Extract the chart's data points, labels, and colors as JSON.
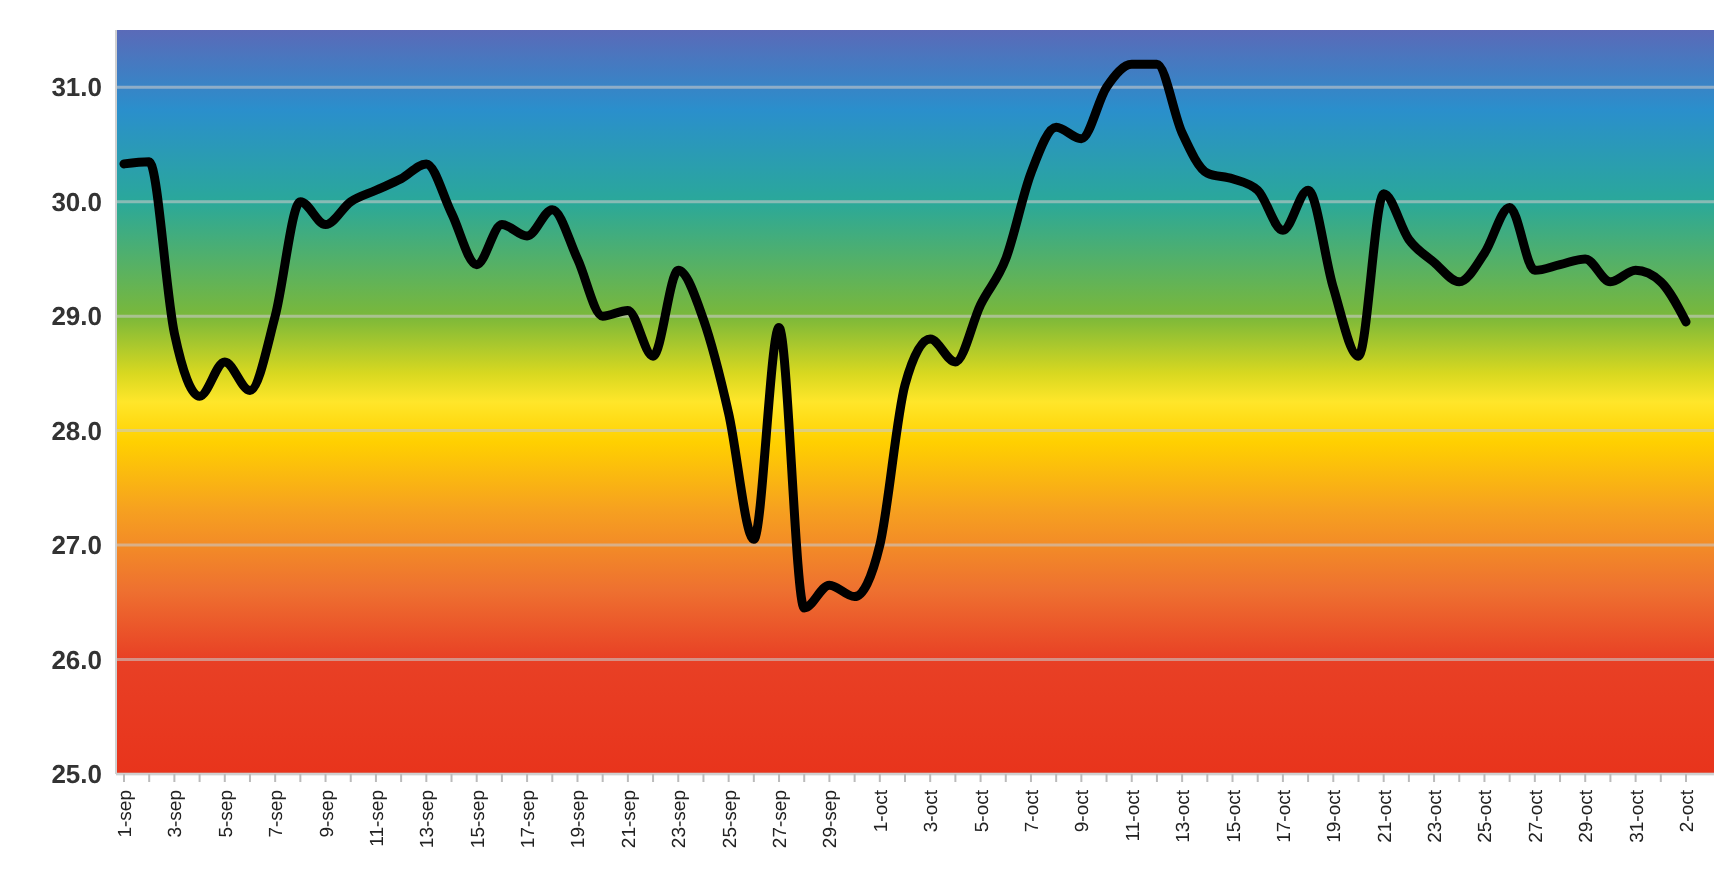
{
  "chart_data": {
    "type": "line",
    "categories": [
      "1-sep",
      null,
      "3-sep",
      null,
      "5-sep",
      null,
      "7-sep",
      null,
      "9-sep",
      null,
      "11-sep",
      null,
      "13-sep",
      null,
      "15-sep",
      null,
      "17-sep",
      null,
      "19-sep",
      null,
      "21-sep",
      null,
      "23-sep",
      null,
      "25-sep",
      null,
      "27-sep",
      null,
      "29-sep",
      null,
      "1-oct",
      null,
      "3-oct",
      null,
      "5-oct",
      null,
      "7-oct",
      null,
      "9-oct",
      null,
      "11-oct",
      null,
      "13-oct",
      null,
      "15-oct",
      null,
      "17-oct",
      null,
      "19-oct",
      null,
      "21-oct",
      null,
      "23-oct",
      null,
      "25-oct",
      null,
      "27-oct",
      null,
      "29-oct",
      null,
      "31-oct",
      null,
      "2-oct"
    ],
    "series": [
      {
        "color": "#000000",
        "values": [
          30.33,
          30.35,
          28.85,
          28.3,
          28.6,
          28.35,
          29.0,
          30.0,
          29.8,
          30.0,
          30.1,
          30.2,
          30.33,
          29.9,
          29.45,
          29.8,
          29.7,
          29.93,
          29.5,
          29.0,
          29.05,
          28.65,
          29.4,
          28.97,
          28.15,
          27.05,
          28.9,
          26.45,
          26.65,
          26.55,
          27.0,
          28.4,
          28.8,
          28.6,
          29.1,
          29.5,
          30.25,
          30.65,
          30.55,
          31.0,
          31.2,
          31.2,
          30.6,
          30.25,
          30.2,
          30.1,
          29.75,
          30.1,
          29.25,
          28.65,
          30.07,
          29.67,
          29.47,
          29.3,
          29.55,
          29.95,
          29.4,
          29.45,
          29.5,
          29.3,
          29.4,
          29.3,
          28.95
        ]
      }
    ],
    "ylim": [
      25,
      31.5
    ],
    "yticks": [
      {
        "value": 25,
        "label": "25.0"
      },
      {
        "value": 26,
        "label": "26.0"
      },
      {
        "value": 27,
        "label": "27.0"
      },
      {
        "value": 28,
        "label": "28.0"
      },
      {
        "value": 29,
        "label": "29.0"
      },
      {
        "value": 30,
        "label": "30.0"
      },
      {
        "value": 31,
        "label": "31.0"
      }
    ],
    "grid": "y",
    "marker": "none",
    "line_style": "solid"
  }
}
